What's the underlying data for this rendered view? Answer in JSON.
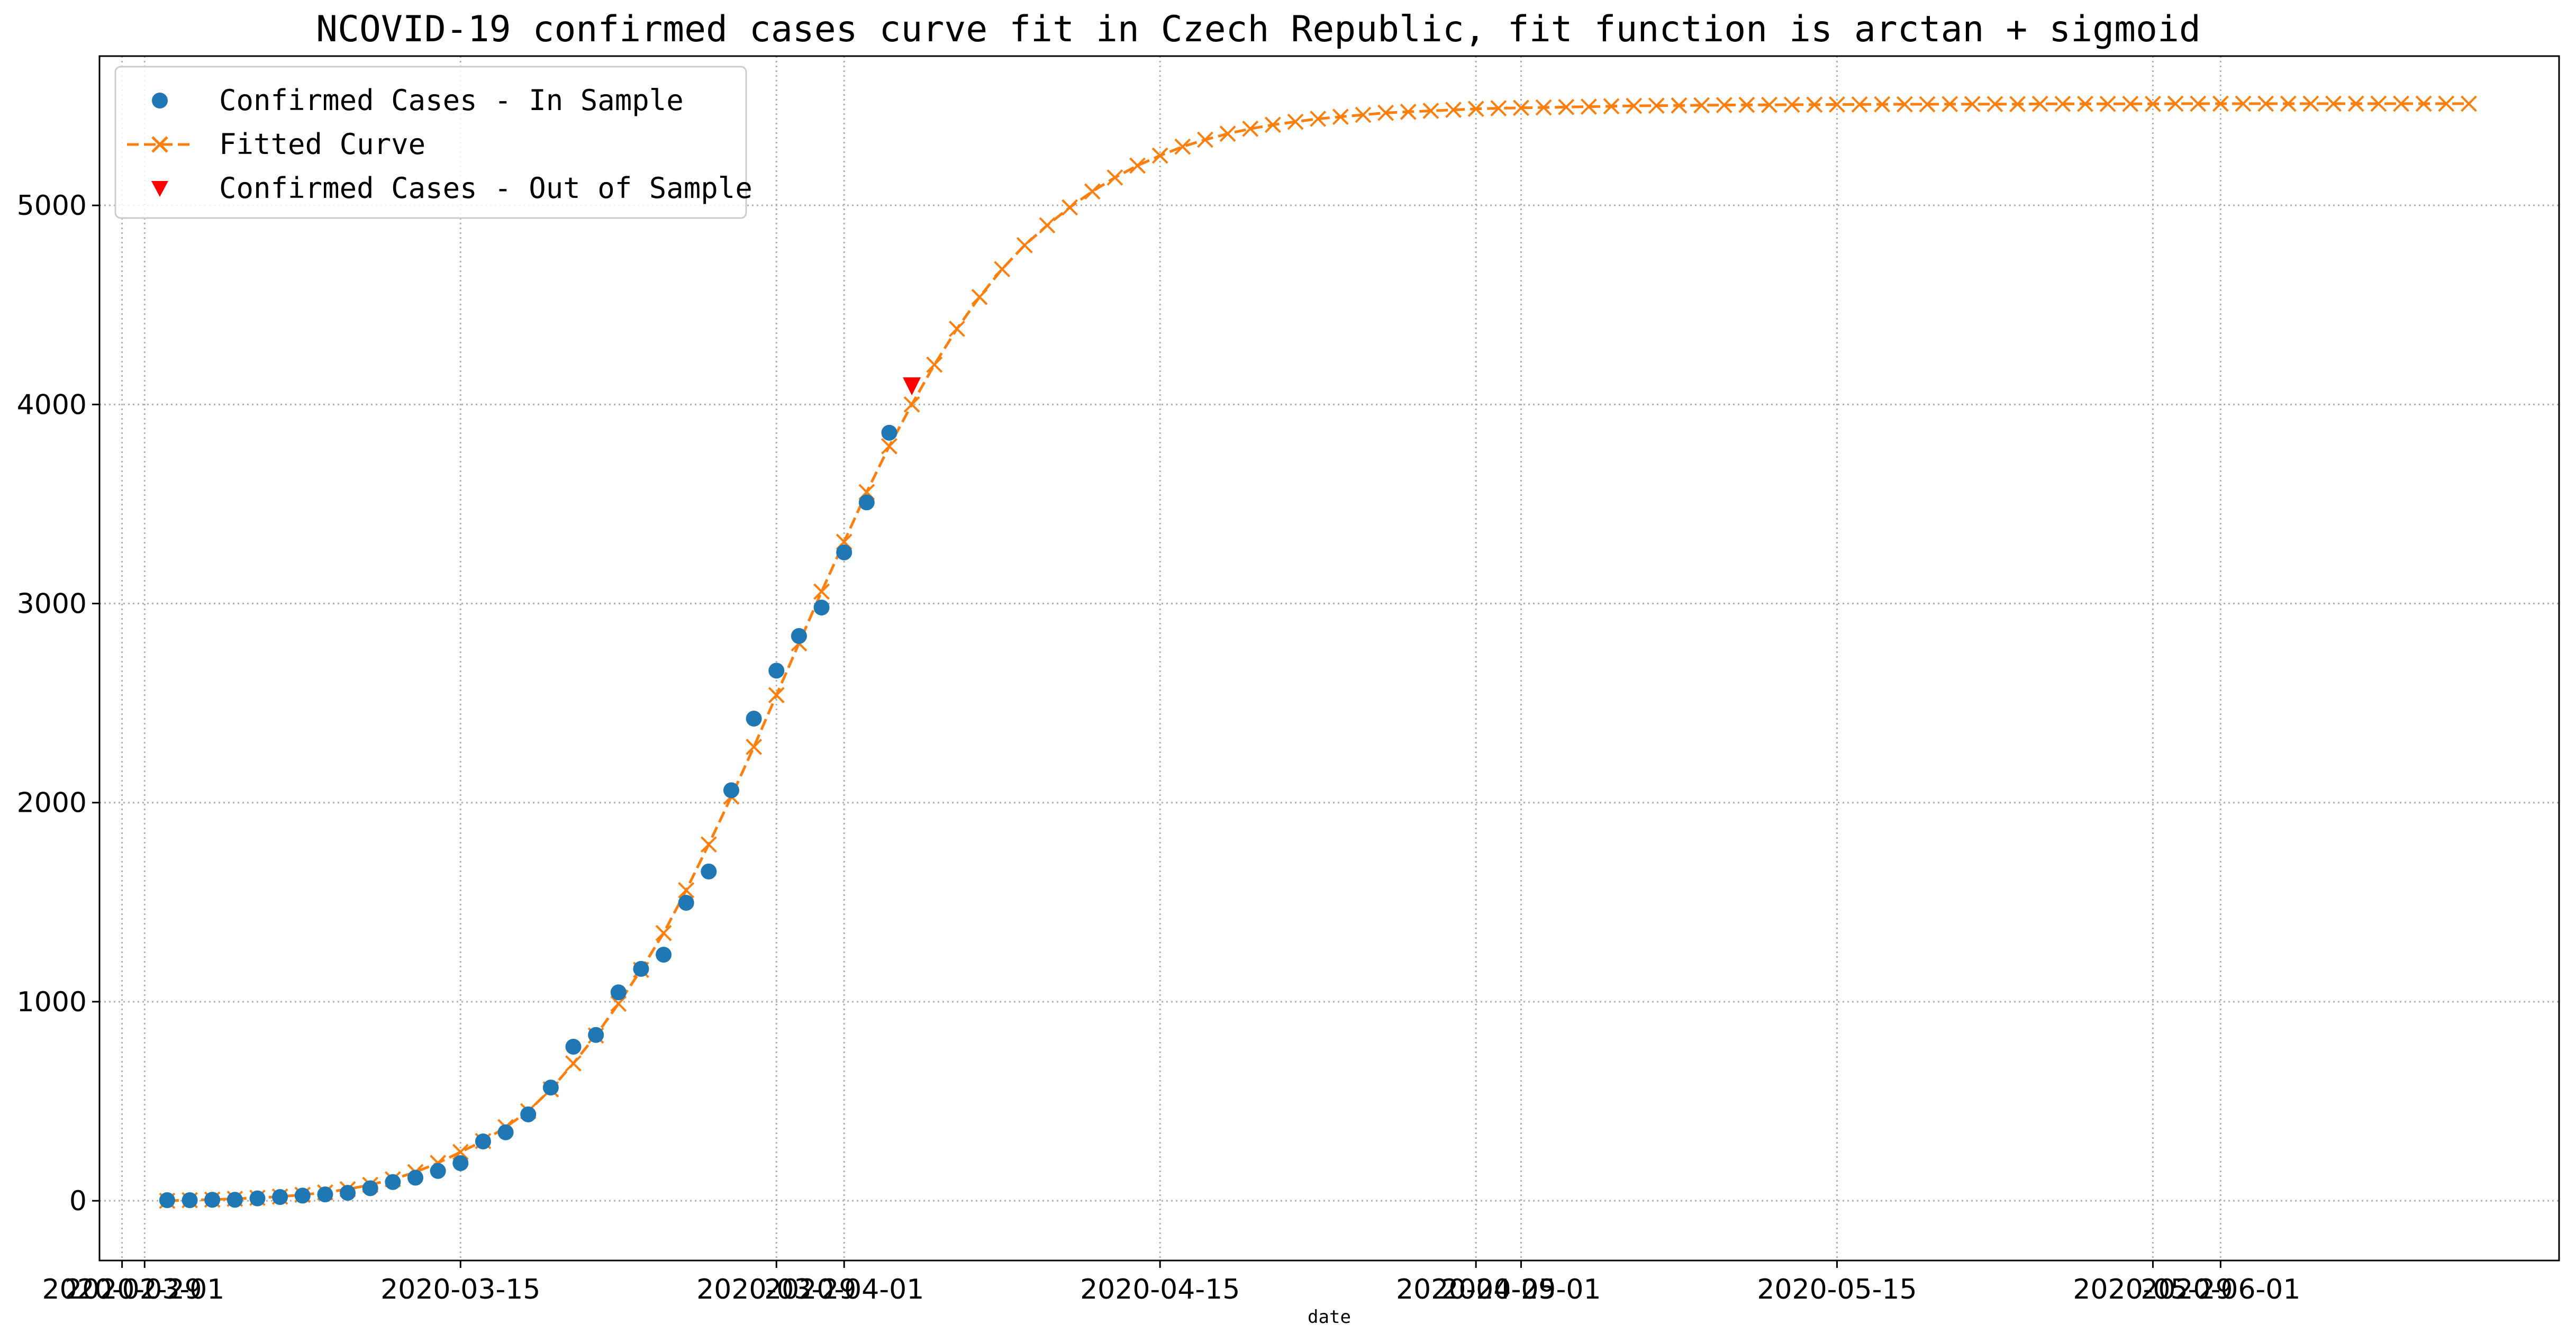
{
  "chart_data": {
    "type": "line",
    "title": "NCOVID-19 confirmed cases curve fit in Czech Republic, fit function is arctan + sigmoid",
    "xlabel": "date",
    "ylabel": "",
    "xlim": [
      "2020-02-28",
      "2020-06-16"
    ],
    "ylim": [
      -300,
      5750
    ],
    "grid": true,
    "legend_position": "top-left",
    "x_ticks": [
      {
        "date": "2020-02-29",
        "label": "2020-02-29"
      },
      {
        "date": "2020-03-01",
        "label": "2020-03-01"
      },
      {
        "date": "2020-03-15",
        "label": "2020-03-15"
      },
      {
        "date": "2020-03-29",
        "label": "2020-03-29"
      },
      {
        "date": "2020-04-01",
        "label": "2020-04-01"
      },
      {
        "date": "2020-04-15",
        "label": "2020-04-15"
      },
      {
        "date": "2020-04-29",
        "label": "2020-04-29"
      },
      {
        "date": "2020-05-01",
        "label": "2020-05-01"
      },
      {
        "date": "2020-05-15",
        "label": "2020-05-15"
      },
      {
        "date": "2020-05-29",
        "label": "2020-05-29"
      },
      {
        "date": "2020-06-01",
        "label": "2020-06-01"
      }
    ],
    "y_ticks": [
      0,
      1000,
      2000,
      3000,
      4000,
      5000
    ],
    "series": [
      {
        "name": "Confirmed Cases - In Sample",
        "style": "markers",
        "marker": "circle",
        "color": "#1f77b4",
        "x": [
          "2020-03-02",
          "2020-03-03",
          "2020-03-04",
          "2020-03-05",
          "2020-03-06",
          "2020-03-07",
          "2020-03-08",
          "2020-03-09",
          "2020-03-10",
          "2020-03-11",
          "2020-03-12",
          "2020-03-13",
          "2020-03-14",
          "2020-03-15",
          "2020-03-16",
          "2020-03-17",
          "2020-03-18",
          "2020-03-19",
          "2020-03-20",
          "2020-03-21",
          "2020-03-22",
          "2020-03-23",
          "2020-03-24",
          "2020-03-25",
          "2020-03-26",
          "2020-03-27",
          "2020-03-28",
          "2020-03-29",
          "2020-03-30",
          "2020-03-31",
          "2020-04-01",
          "2020-04-02",
          "2020-04-03"
        ],
        "y": [
          3,
          3,
          5,
          5,
          12,
          19,
          26,
          32,
          40,
          63,
          94,
          116,
          150,
          189,
          298,
          344,
          434,
          569,
          774,
          833,
          1047,
          1165,
          1236,
          1497,
          1654,
          2062,
          2422,
          2663,
          2837,
          2980,
          3257,
          3508,
          3858
        ]
      },
      {
        "name": "Fitted Curve",
        "style": "dashed-line-x-markers",
        "marker": "x",
        "color": "#ff7f0e",
        "x": [
          "2020-03-02",
          "2020-03-03",
          "2020-03-04",
          "2020-03-05",
          "2020-03-06",
          "2020-03-07",
          "2020-03-08",
          "2020-03-09",
          "2020-03-10",
          "2020-03-11",
          "2020-03-12",
          "2020-03-13",
          "2020-03-14",
          "2020-03-15",
          "2020-03-16",
          "2020-03-17",
          "2020-03-18",
          "2020-03-19",
          "2020-03-20",
          "2020-03-21",
          "2020-03-22",
          "2020-03-23",
          "2020-03-24",
          "2020-03-25",
          "2020-03-26",
          "2020-03-27",
          "2020-03-28",
          "2020-03-29",
          "2020-03-30",
          "2020-03-31",
          "2020-04-01",
          "2020-04-02",
          "2020-04-03",
          "2020-04-04",
          "2020-04-05",
          "2020-04-06",
          "2020-04-07",
          "2020-04-08",
          "2020-04-09",
          "2020-04-10",
          "2020-04-11",
          "2020-04-12",
          "2020-04-13",
          "2020-04-14",
          "2020-04-15",
          "2020-04-16",
          "2020-04-17",
          "2020-04-18",
          "2020-04-19",
          "2020-04-20",
          "2020-04-21",
          "2020-04-22",
          "2020-04-23",
          "2020-04-24",
          "2020-04-25",
          "2020-04-26",
          "2020-04-27",
          "2020-04-28",
          "2020-04-29",
          "2020-04-30",
          "2020-05-01",
          "2020-05-02",
          "2020-05-03",
          "2020-05-04",
          "2020-05-05",
          "2020-05-06",
          "2020-05-07",
          "2020-05-08",
          "2020-05-09",
          "2020-05-10",
          "2020-05-11",
          "2020-05-12",
          "2020-05-13",
          "2020-05-14",
          "2020-05-15",
          "2020-05-16",
          "2020-05-17",
          "2020-05-18",
          "2020-05-19",
          "2020-05-20",
          "2020-05-21",
          "2020-05-22",
          "2020-05-23",
          "2020-05-24",
          "2020-05-25",
          "2020-05-26",
          "2020-05-27",
          "2020-05-28",
          "2020-05-29",
          "2020-05-30",
          "2020-05-31",
          "2020-06-01",
          "2020-06-02",
          "2020-06-03",
          "2020-06-04",
          "2020-06-05",
          "2020-06-06",
          "2020-06-07",
          "2020-06-08",
          "2020-06-09",
          "2020-06-10",
          "2020-06-11",
          "2020-06-12"
        ],
        "y": [
          0,
          3,
          6,
          10,
          15,
          21,
          30,
          42,
          58,
          80,
          108,
          144,
          190,
          245,
          300,
          370,
          450,
          560,
          690,
          830,
          990,
          1160,
          1345,
          1560,
          1790,
          2030,
          2280,
          2540,
          2800,
          3060,
          3310,
          3560,
          3790,
          4000,
          4200,
          4380,
          4540,
          4680,
          4800,
          4900,
          4990,
          5070,
          5140,
          5200,
          5250,
          5295,
          5330,
          5360,
          5385,
          5405,
          5420,
          5435,
          5445,
          5455,
          5465,
          5470,
          5475,
          5480,
          5485,
          5488,
          5490,
          5492,
          5494,
          5496,
          5498,
          5500,
          5501,
          5502,
          5503,
          5504,
          5505,
          5505,
          5506,
          5506,
          5507,
          5507,
          5508,
          5508,
          5508,
          5509,
          5509,
          5509,
          5509,
          5510,
          5510,
          5510,
          5510,
          5510,
          5510,
          5511,
          5511,
          5511,
          5511,
          5511,
          5511,
          5511,
          5511,
          5511,
          5511,
          5511,
          5511,
          5511,
          5511
        ]
      },
      {
        "name": "Confirmed Cases - Out of Sample",
        "style": "markers",
        "marker": "triangle-down",
        "color": "#ff0000",
        "x": [
          "2020-04-04"
        ],
        "y": [
          4091
        ]
      }
    ]
  }
}
